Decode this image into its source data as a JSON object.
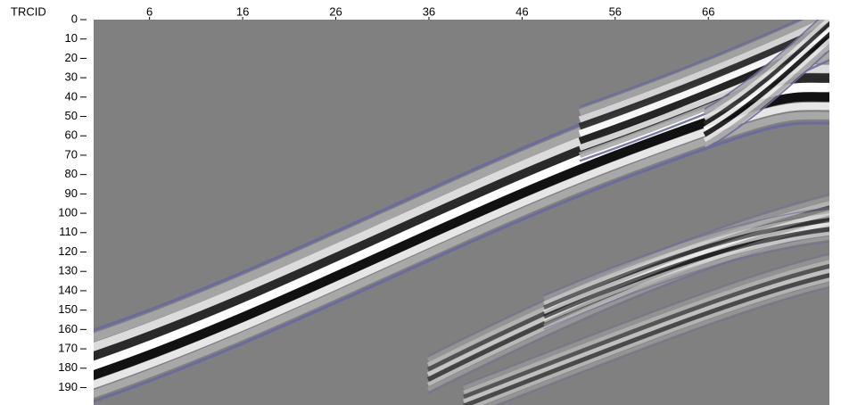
{
  "chart_data": {
    "type": "seismic",
    "x_label": "TRCID",
    "xlim": [
      0,
      79
    ],
    "xticks": [
      6,
      16,
      26,
      36,
      46,
      56,
      66
    ],
    "ylim": [
      0,
      199
    ],
    "yticks": [
      0,
      10,
      20,
      30,
      40,
      50,
      60,
      70,
      80,
      90,
      100,
      110,
      120,
      130,
      140,
      150,
      160,
      170,
      180,
      190
    ],
    "background": "#808080"
  }
}
